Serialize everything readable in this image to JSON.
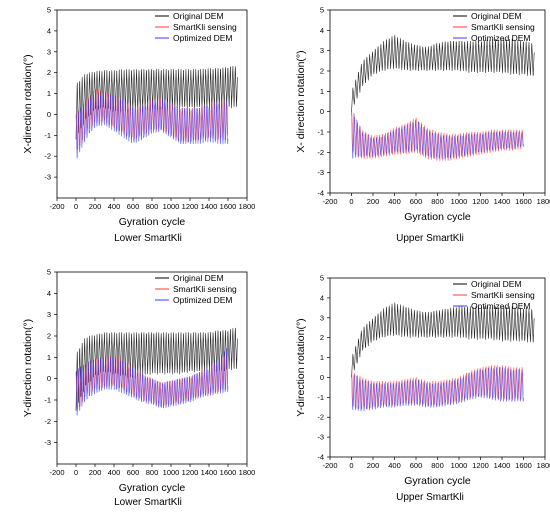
{
  "figure": {
    "panels": [
      {
        "caption": "Lower SmartKli",
        "chart_data": {
          "type": "line",
          "xlabel": "Gyration cycle",
          "ylabel": "X-direction rotation(°)",
          "xlim": [
            -200,
            1800
          ],
          "ylim": [
            -4,
            5
          ],
          "xticks": [
            "-200",
            "0",
            "200",
            "400",
            "600",
            "800",
            "1000",
            "1200",
            "1400",
            "1600",
            "1800"
          ],
          "yticks": [
            "-3",
            "-2",
            "-1",
            "0",
            "1",
            "2",
            "3",
            "4",
            "5"
          ],
          "legend_position": "top-right",
          "series": [
            {
              "name": "Original DEM",
              "color": "#000000",
              "x": [
                0,
                100,
                200,
                300,
                400,
                500,
                600,
                700,
                800,
                900,
                1000,
                1100,
                1200,
                1300,
                1400,
                1500,
                1600,
                1700
              ],
              "upper": [
                1.5,
                2.0,
                2.1,
                2.15,
                2.15,
                2.2,
                2.2,
                2.2,
                2.2,
                2.2,
                2.2,
                2.2,
                2.2,
                2.2,
                2.25,
                2.25,
                2.3,
                2.4
              ],
              "lower": [
                -1.2,
                -0.3,
                0.2,
                0.3,
                0.1,
                0.1,
                0.1,
                0.1,
                0.2,
                0.2,
                0.2,
                0.3,
                0.3,
                0.3,
                0.2,
                0.2,
                0.3,
                0.3
              ]
            },
            {
              "name": "SmartKli sensing",
              "color": "#ff3b3b",
              "x": [
                0,
                100,
                200,
                300,
                400,
                500,
                600,
                700,
                800,
                900,
                1000,
                1100,
                1200,
                1300,
                1400,
                1500,
                1600
              ],
              "upper": [
                0.0,
                0.6,
                1.2,
                1.1,
                0.9,
                0.7,
                0.3,
                0.4,
                0.7,
                0.8,
                0.5,
                0.3,
                0.3,
                0.3,
                0.5,
                0.6,
                0.6
              ],
              "lower": [
                -1.9,
                -0.9,
                -0.4,
                -0.3,
                -0.6,
                -0.9,
                -1.2,
                -1.0,
                -0.7,
                -0.7,
                -1.0,
                -1.3,
                -1.3,
                -1.2,
                -1.1,
                -1.2,
                -1.2
              ]
            },
            {
              "name": "Optimized DEM",
              "color": "#3a3aff",
              "x": [
                0,
                100,
                200,
                300,
                400,
                500,
                600,
                700,
                800,
                900,
                1000,
                1100,
                1200,
                1300,
                1400,
                1500,
                1600
              ],
              "upper": [
                0.0,
                0.6,
                1.0,
                1.0,
                0.9,
                0.7,
                0.3,
                0.4,
                0.6,
                0.8,
                0.5,
                0.3,
                0.3,
                0.3,
                0.5,
                0.6,
                0.6
              ],
              "lower": [
                -2.2,
                -1.2,
                -0.6,
                -0.5,
                -0.8,
                -1.1,
                -1.4,
                -1.2,
                -0.9,
                -0.8,
                -1.1,
                -1.4,
                -1.4,
                -1.4,
                -1.3,
                -1.4,
                -1.4
              ]
            }
          ]
        }
      },
      {
        "caption": "Upper SmartKli",
        "chart_data": {
          "type": "line",
          "xlabel": "Gyration cycle",
          "ylabel": "X- direction rotation(°)",
          "xlim": [
            -200,
            1800
          ],
          "ylim": [
            -4,
            5
          ],
          "xticks": [
            "-200",
            "0",
            "200",
            "400",
            "600",
            "800",
            "1000",
            "1200",
            "1400",
            "1600",
            "1800"
          ],
          "yticks": [
            "-4",
            "-3",
            "-2",
            "-1",
            "0",
            "1",
            "2",
            "3",
            "4",
            "5"
          ],
          "legend_position": "top-right",
          "series": [
            {
              "name": "Original DEM",
              "color": "#000000",
              "x": [
                0,
                100,
                200,
                300,
                400,
                500,
                600,
                700,
                800,
                900,
                1000,
                1100,
                1200,
                1300,
                1400,
                1500,
                1600,
                1700
              ],
              "upper": [
                1.0,
                2.5,
                3.0,
                3.5,
                3.8,
                3.5,
                3.3,
                3.2,
                3.4,
                3.5,
                3.5,
                3.5,
                3.5,
                3.6,
                3.6,
                3.6,
                3.5,
                3.4
              ],
              "lower": [
                0.0,
                1.2,
                1.8,
                2.0,
                2.1,
                2.0,
                2.0,
                2.0,
                2.0,
                2.0,
                2.0,
                1.9,
                1.9,
                1.9,
                1.9,
                1.8,
                1.8,
                1.7
              ]
            },
            {
              "name": "SmartKli sensing",
              "color": "#ff3b3b",
              "x": [
                0,
                100,
                200,
                300,
                400,
                500,
                600,
                700,
                800,
                900,
                1000,
                1100,
                1200,
                1300,
                1400,
                1500,
                1600
              ],
              "upper": [
                0.0,
                -0.9,
                -1.2,
                -1.1,
                -0.8,
                -0.6,
                -0.3,
                -0.8,
                -1.0,
                -1.1,
                -1.1,
                -1.0,
                -1.0,
                -0.9,
                -0.9,
                -0.9,
                -0.9
              ],
              "lower": [
                -2.0,
                -2.3,
                -2.3,
                -2.2,
                -2.1,
                -2.1,
                -2.0,
                -2.3,
                -2.4,
                -2.4,
                -2.3,
                -2.2,
                -2.1,
                -2.0,
                -1.9,
                -1.9,
                -1.8
              ]
            },
            {
              "name": "Optimized DEM",
              "color": "#3a3aff",
              "x": [
                0,
                100,
                200,
                300,
                400,
                500,
                600,
                700,
                800,
                900,
                1000,
                1100,
                1200,
                1300,
                1400,
                1500,
                1600
              ],
              "upper": [
                0.2,
                -1.0,
                -1.3,
                -1.2,
                -0.9,
                -0.7,
                -0.4,
                -0.9,
                -1.1,
                -1.2,
                -1.2,
                -1.1,
                -1.1,
                -1.0,
                -1.0,
                -1.0,
                -1.0
              ],
              "lower": [
                -2.3,
                -2.2,
                -2.2,
                -2.1,
                -2.0,
                -2.0,
                -1.9,
                -2.2,
                -2.3,
                -2.3,
                -2.2,
                -2.1,
                -2.0,
                -1.9,
                -1.8,
                -1.8,
                -1.7
              ]
            }
          ]
        }
      },
      {
        "caption": "Lower SmartKli",
        "chart_data": {
          "type": "line",
          "xlabel": "Gyration cycle",
          "ylabel": "Y-direction rotation(°)",
          "xlim": [
            -200,
            1800
          ],
          "ylim": [
            -4,
            5
          ],
          "xticks": [
            "-200",
            "0",
            "200",
            "400",
            "600",
            "800",
            "1000",
            "1200",
            "1400",
            "1600",
            "1800"
          ],
          "yticks": [
            "-3",
            "-2",
            "-1",
            "0",
            "1",
            "2",
            "3",
            "4",
            "5"
          ],
          "legend_position": "top-right",
          "series": [
            {
              "name": "Original DEM",
              "color": "#000000",
              "x": [
                0,
                100,
                200,
                300,
                400,
                500,
                600,
                700,
                800,
                900,
                1000,
                1100,
                1200,
                1300,
                1400,
                1500,
                1600,
                1700
              ],
              "upper": [
                1.2,
                2.0,
                2.1,
                2.2,
                2.2,
                2.2,
                2.2,
                2.2,
                2.2,
                2.2,
                2.2,
                2.2,
                2.2,
                2.2,
                2.2,
                2.3,
                2.3,
                2.5
              ],
              "lower": [
                -1.5,
                -0.4,
                0.1,
                0.3,
                0.2,
                0.1,
                0.0,
                0.1,
                0.2,
                0.2,
                0.2,
                0.2,
                0.3,
                0.3,
                0.3,
                0.3,
                0.4,
                0.4
              ]
            },
            {
              "name": "SmartKli sensing",
              "color": "#ff3b3b",
              "x": [
                0,
                100,
                200,
                300,
                400,
                500,
                600,
                700,
                800,
                900,
                1000,
                1100,
                1200,
                1300,
                1400,
                1500,
                1600
              ],
              "upper": [
                0.3,
                0.6,
                0.9,
                1.0,
                1.1,
                0.9,
                0.5,
                0.2,
                0.0,
                -0.2,
                -0.1,
                0.0,
                0.1,
                0.3,
                0.5,
                0.8,
                1.2
              ],
              "lower": [
                -1.6,
                -0.8,
                -0.5,
                -0.4,
                -0.3,
                -0.5,
                -0.8,
                -1.0,
                -1.1,
                -1.3,
                -1.2,
                -1.1,
                -1.0,
                -0.8,
                -0.7,
                -0.6,
                -0.5
              ]
            },
            {
              "name": "Optimized DEM",
              "color": "#3a3aff",
              "x": [
                0,
                100,
                200,
                300,
                400,
                500,
                600,
                700,
                800,
                900,
                1000,
                1100,
                1200,
                1300,
                1400,
                1500,
                1600
              ],
              "upper": [
                0.4,
                0.7,
                0.9,
                1.0,
                1.0,
                0.8,
                0.5,
                0.2,
                0.0,
                -0.2,
                -0.1,
                0.0,
                0.1,
                0.3,
                0.5,
                0.9,
                1.5
              ],
              "lower": [
                -1.8,
                -1.0,
                -0.7,
                -0.5,
                -0.5,
                -0.7,
                -0.9,
                -1.1,
                -1.2,
                -1.4,
                -1.3,
                -1.2,
                -1.1,
                -0.9,
                -0.8,
                -0.7,
                -0.6
              ]
            }
          ]
        }
      },
      {
        "caption": "Upper SmartKli",
        "chart_data": {
          "type": "line",
          "xlabel": "Gyration cycle",
          "ylabel": "Y-direction rotation(°)",
          "xlim": [
            -200,
            1800
          ],
          "ylim": [
            -4,
            5
          ],
          "xticks": [
            "-200",
            "0",
            "200",
            "400",
            "600",
            "800",
            "1000",
            "1200",
            "1400",
            "1600",
            "1800"
          ],
          "yticks": [
            "-4",
            "-3",
            "-2",
            "-1",
            "0",
            "1",
            "2",
            "3",
            "4",
            "5"
          ],
          "legend_position": "top-right",
          "series": [
            {
              "name": "Original DEM",
              "color": "#000000",
              "x": [
                0,
                100,
                200,
                300,
                400,
                500,
                600,
                700,
                800,
                900,
                1000,
                1100,
                1200,
                1300,
                1400,
                1500,
                1600,
                1700
              ],
              "upper": [
                1.0,
                2.5,
                3.0,
                3.5,
                3.8,
                3.6,
                3.4,
                3.3,
                3.4,
                3.5,
                3.6,
                3.6,
                3.6,
                3.6,
                3.6,
                3.6,
                3.5,
                3.5
              ],
              "lower": [
                0.0,
                1.3,
                1.8,
                2.0,
                2.1,
                2.0,
                2.0,
                2.0,
                2.0,
                2.0,
                2.0,
                1.9,
                1.9,
                1.9,
                1.8,
                1.8,
                1.8,
                1.7
              ]
            },
            {
              "name": "SmartKli sensing",
              "color": "#ff3b3b",
              "x": [
                0,
                100,
                200,
                300,
                400,
                500,
                600,
                700,
                800,
                900,
                1000,
                1100,
                1200,
                1300,
                1400,
                1500,
                1600
              ],
              "upper": [
                0.3,
                0.0,
                -0.2,
                -0.2,
                -0.2,
                -0.1,
                0.0,
                -0.2,
                -0.2,
                -0.1,
                0.0,
                0.3,
                0.5,
                0.6,
                0.6,
                0.5,
                0.5
              ],
              "lower": [
                -1.5,
                -1.6,
                -1.5,
                -1.4,
                -1.4,
                -1.3,
                -1.3,
                -1.4,
                -1.4,
                -1.3,
                -1.2,
                -1.0,
                -0.9,
                -1.0,
                -1.1,
                -1.1,
                -1.1
              ]
            },
            {
              "name": "Optimized DEM",
              "color": "#3a3aff",
              "x": [
                0,
                100,
                200,
                300,
                400,
                500,
                600,
                700,
                800,
                900,
                1000,
                1100,
                1200,
                1300,
                1400,
                1500,
                1600
              ],
              "upper": [
                0.2,
                -0.1,
                -0.3,
                -0.3,
                -0.3,
                -0.2,
                -0.1,
                -0.3,
                -0.3,
                -0.2,
                -0.1,
                0.2,
                0.4,
                0.5,
                0.5,
                0.4,
                0.4
              ],
              "lower": [
                -1.6,
                -1.7,
                -1.6,
                -1.5,
                -1.5,
                -1.4,
                -1.4,
                -1.5,
                -1.5,
                -1.4,
                -1.3,
                -1.1,
                -1.0,
                -1.1,
                -1.2,
                -1.2,
                -1.2
              ]
            }
          ]
        }
      }
    ]
  }
}
